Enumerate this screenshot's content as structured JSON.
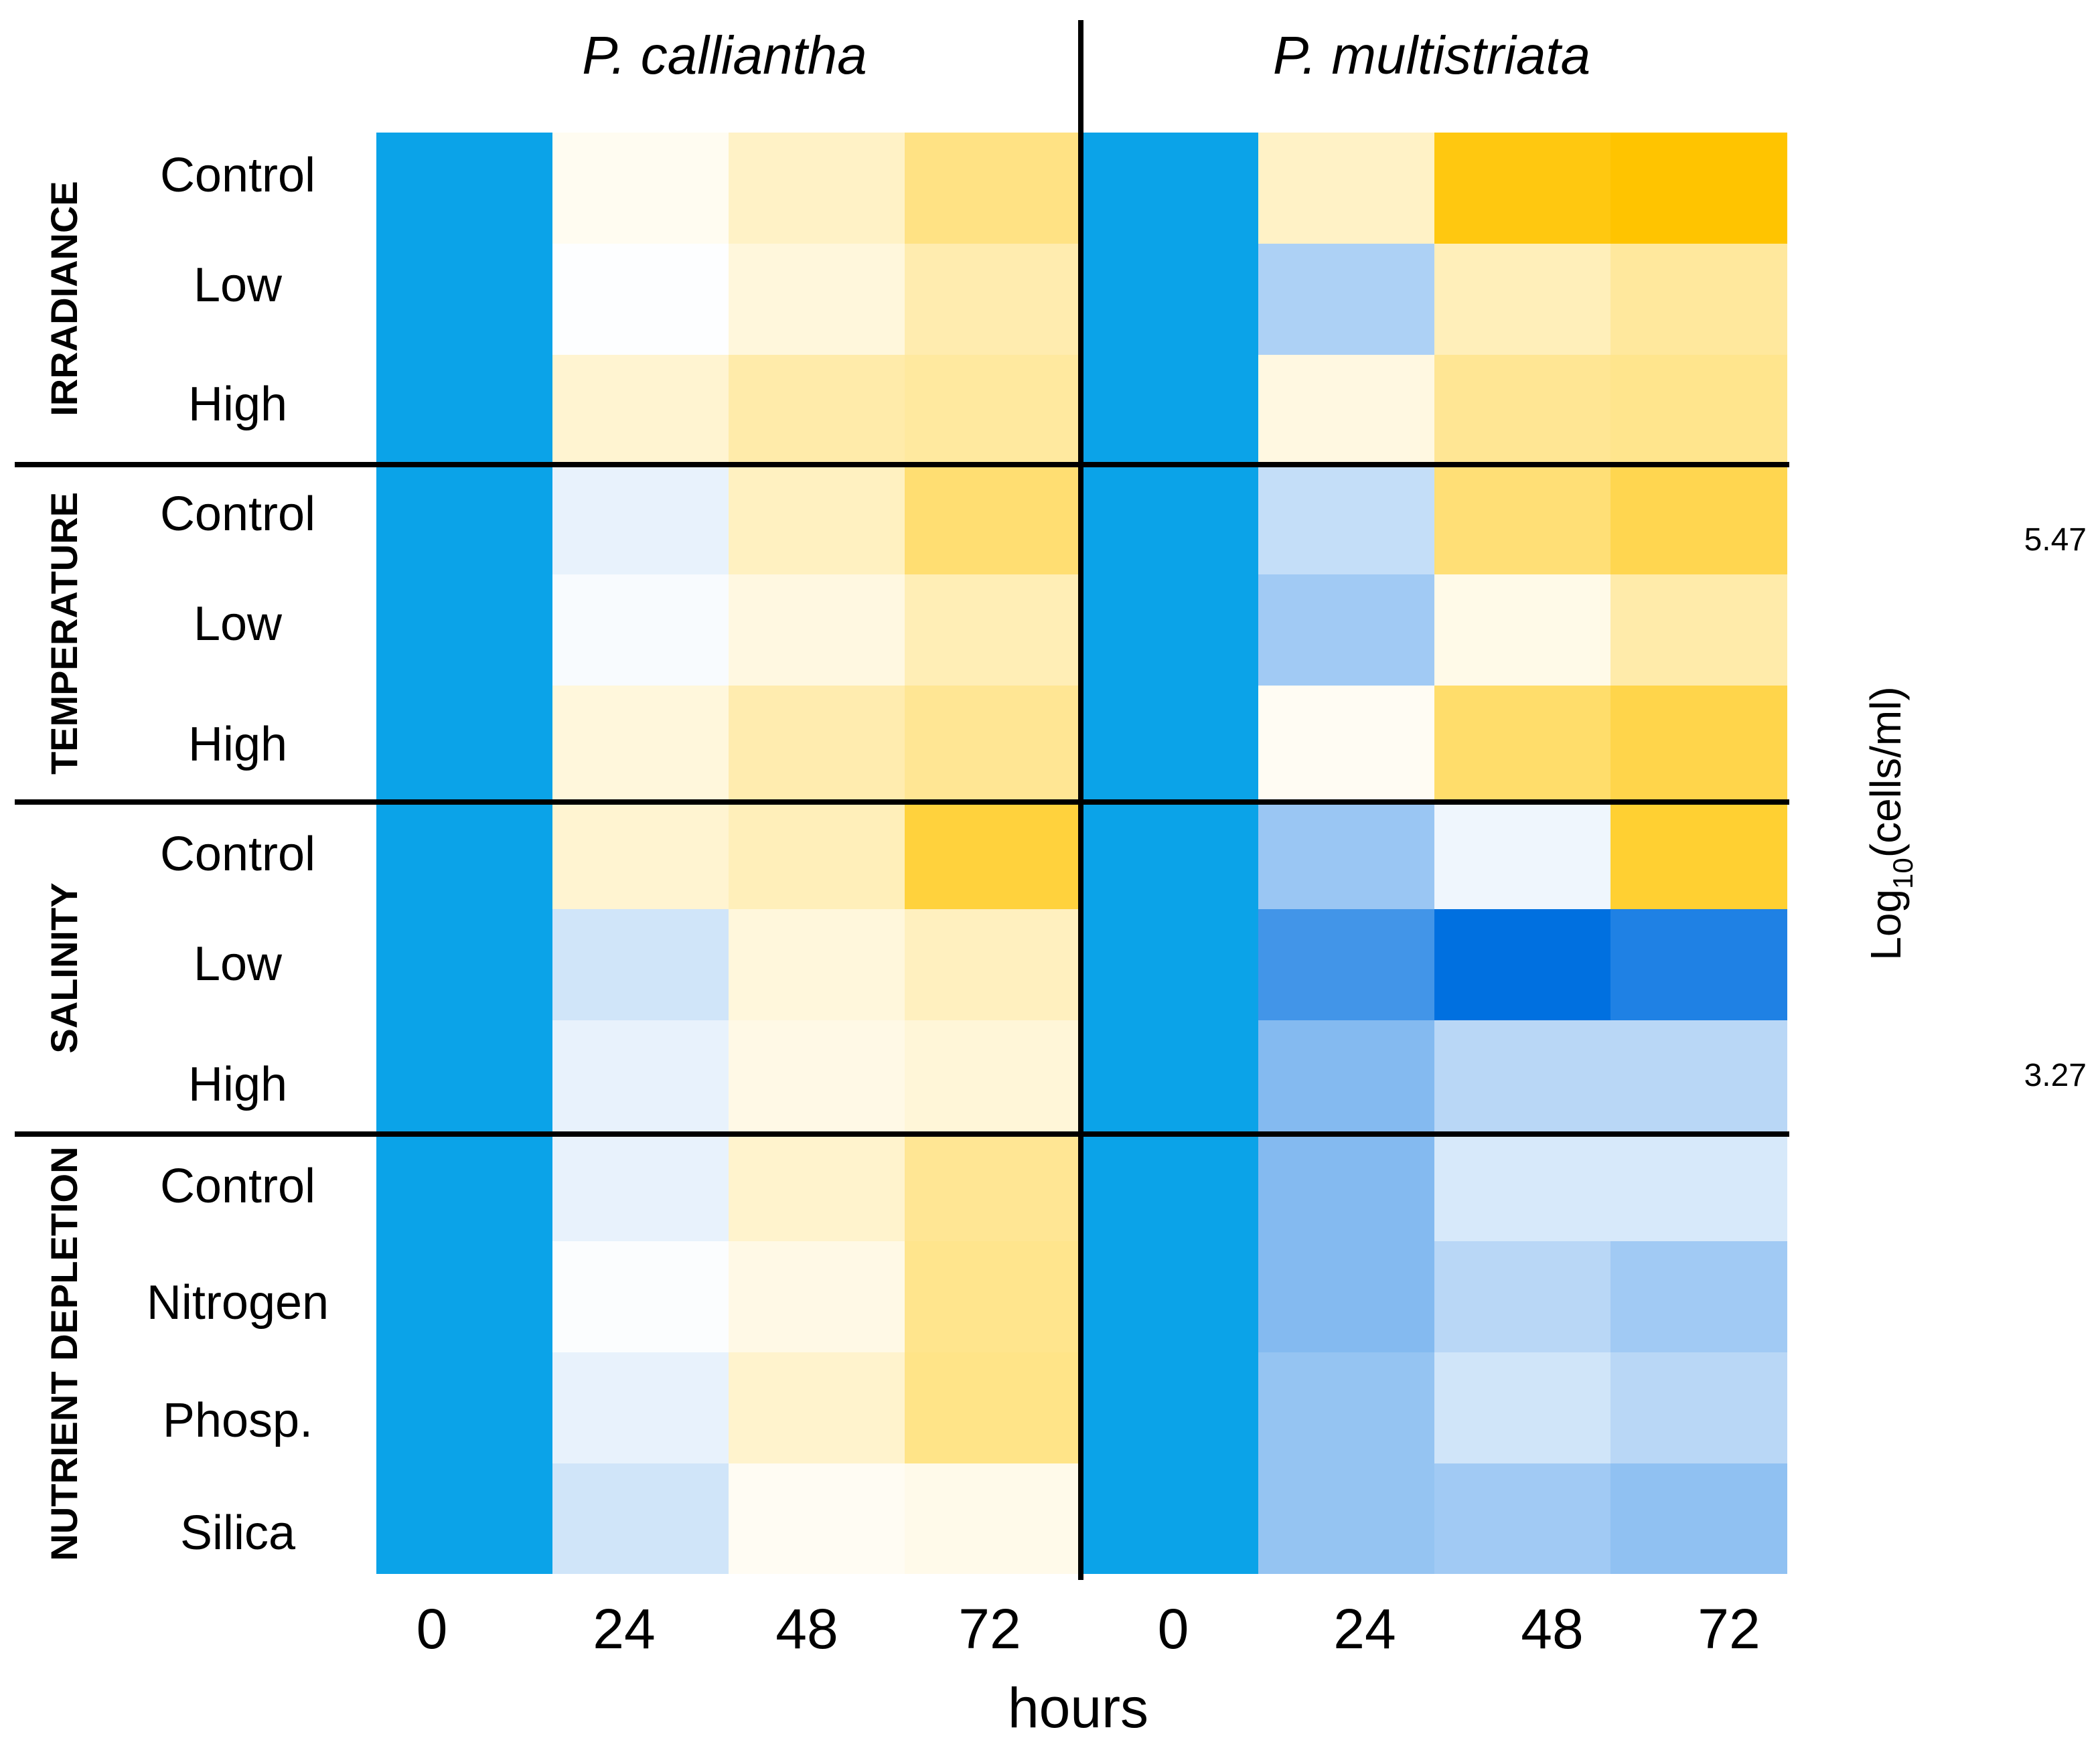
{
  "chart_data": {
    "type": "heatmap",
    "species": [
      "P. calliantha",
      "P. multistriata"
    ],
    "x": [
      "0",
      "24",
      "48",
      "72"
    ],
    "xlabel": "hours",
    "colorbar": {
      "label_prefix": "Log",
      "label_sub": "10",
      "label_suffix": "(cells/ml)",
      "max": 5.47,
      "min": 3.27,
      "max_label": "5.47",
      "min_label": "3.27"
    },
    "groups": [
      {
        "name": "IRRADIANCE",
        "rows": [
          "Control",
          "Low",
          "High"
        ]
      },
      {
        "name": "TEMPERATURE",
        "rows": [
          "Control",
          "Low",
          "High"
        ]
      },
      {
        "name": "SALINITY",
        "rows": [
          "Control",
          "Low",
          "High"
        ]
      },
      {
        "name": "NUTRIENT DEPLETION",
        "rows": [
          "Control",
          "Nitrogen",
          "Phosp.",
          "Silica"
        ]
      }
    ],
    "values": [
      [
        3.45,
        4.41,
        4.6,
        4.89,
        3.45,
        4.6,
        5.4,
        5.47
      ],
      [
        3.45,
        4.34,
        4.5,
        4.7,
        3.45,
        4.0,
        4.65,
        4.78
      ],
      [
        3.45,
        4.55,
        4.72,
        4.77,
        3.45,
        4.48,
        4.82,
        4.85
      ],
      [
        3.45,
        4.25,
        4.62,
        4.97,
        3.45,
        4.1,
        4.95,
        5.12
      ],
      [
        3.45,
        4.32,
        4.48,
        4.67,
        3.45,
        3.95,
        4.45,
        4.72
      ],
      [
        3.45,
        4.5,
        4.7,
        4.82,
        3.45,
        4.4,
        5.0,
        5.14
      ],
      [
        3.45,
        4.55,
        4.65,
        5.2,
        3.45,
        3.92,
        4.28,
        5.25
      ],
      [
        3.45,
        4.15,
        4.5,
        4.63,
        3.45,
        3.55,
        3.27,
        3.4
      ],
      [
        3.45,
        4.25,
        4.46,
        4.52,
        3.45,
        3.83,
        4.05,
        4.05
      ],
      [
        3.45,
        4.25,
        4.57,
        4.82,
        3.45,
        3.83,
        4.18,
        4.18
      ],
      [
        3.45,
        4.33,
        4.46,
        4.85,
        3.45,
        3.83,
        4.05,
        3.95
      ],
      [
        3.45,
        4.25,
        4.57,
        4.87,
        3.45,
        3.9,
        4.15,
        4.05
      ],
      [
        3.45,
        4.15,
        4.4,
        4.44,
        3.45,
        3.9,
        3.95,
        3.88
      ]
    ]
  }
}
